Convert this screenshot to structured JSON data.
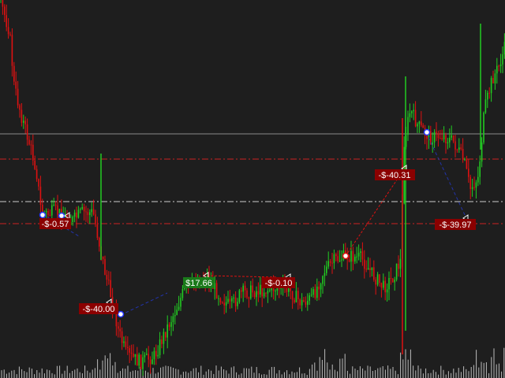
{
  "colors": {
    "background": "#1e1e1e",
    "bull_candle": "#22cc22",
    "bear_candle": "#dd1111",
    "level_line": "#cc2222",
    "midline": "#cccccc",
    "crosshair": "#8a8a8a",
    "volume": "#bbbbbb",
    "trade_link": "#2233aa",
    "loss_label_bg": "#8b0000",
    "win_label_bg": "#1a7a1a",
    "label_text": "#ffffff"
  },
  "chart_data": {
    "type": "candlestick",
    "title": "",
    "xlabel": "",
    "ylabel": "",
    "grid": false,
    "legend": "none",
    "price_range": [
      0,
      480
    ],
    "horizontal_levels": [
      {
        "kind": "crosshair",
        "price": 170
      },
      {
        "kind": "dash-dot-red",
        "price": 202
      },
      {
        "kind": "dash-dot-white",
        "price": 256
      },
      {
        "kind": "dash-dot-red",
        "price": 284
      }
    ],
    "trade_labels": [
      {
        "text": "-$-0.57",
        "result": "loss"
      },
      {
        "text": "-$-40.00",
        "result": "loss"
      },
      {
        "text": "$17.66",
        "result": "win"
      },
      {
        "text": "-$-0.10",
        "result": "loss"
      },
      {
        "text": "-$-40.31",
        "result": "loss"
      },
      {
        "text": "-$-39.97",
        "result": "loss"
      }
    ]
  }
}
